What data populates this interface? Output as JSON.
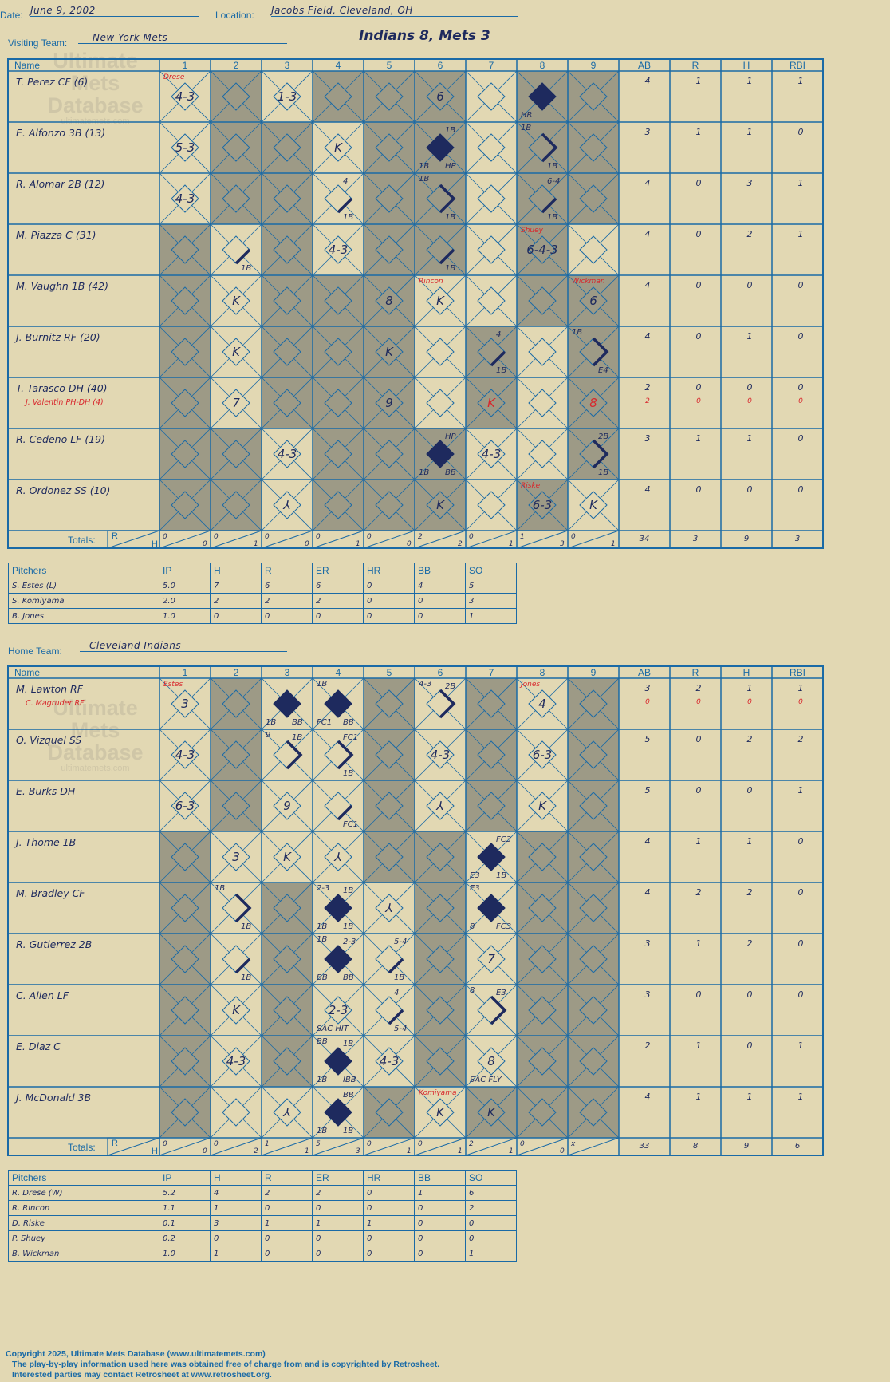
{
  "header": {
    "date_label": "Date:",
    "date_value": "June 9, 2002",
    "location_label": "Location:",
    "location_value": "Jacobs Field, Cleveland, OH",
    "visiting_label": "Visiting Team:",
    "visiting_value": "New York Mets",
    "home_label": "Home Team:",
    "home_value": "Cleveland Indians",
    "game_title": "Indians 8, Mets 3"
  },
  "watermark": {
    "line1": "Ultimate",
    "line2": "Mets",
    "line3": "Database",
    "site": "ultimatemets.com"
  },
  "columns": {
    "name": "Name",
    "innings": [
      "1",
      "2",
      "3",
      "4",
      "5",
      "6",
      "7",
      "8",
      "9"
    ],
    "stats": [
      "AB",
      "R",
      "H",
      "RBI"
    ],
    "totals_label": "Totals:",
    "r": "R",
    "h": "H"
  },
  "colors": {
    "background": "#e2d8b3",
    "grid": "#1a6aa6",
    "shade": "#9d9a86",
    "ink": "#1e2a5e",
    "red": "#d8262c"
  },
  "visitor": {
    "shade_ranges": [
      [
        1,
        0,
        2
      ],
      [
        3,
        0,
        3
      ],
      [
        4,
        0,
        8
      ],
      [
        1,
        3,
        3
      ],
      [
        2,
        0,
        2
      ],
      [
        6,
        2,
        2
      ],
      [
        5,
        3,
        3
      ],
      [
        7,
        0,
        0
      ],
      [
        7,
        1,
        1
      ],
      [
        8,
        0,
        0
      ]
    ],
    "players": [
      {
        "name": "T. Perez CF (6)",
        "sub": "",
        "ab": "4",
        "r": "1",
        "h": "1",
        "rbi": "1",
        "sub_stats": [
          "",
          "",
          "",
          ""
        ]
      },
      {
        "name": "E. Alfonzo 3B (13)",
        "sub": "",
        "ab": "3",
        "r": "1",
        "h": "1",
        "rbi": "0",
        "sub_stats": [
          "",
          "",
          "",
          ""
        ]
      },
      {
        "name": "R. Alomar 2B (12)",
        "sub": "",
        "ab": "4",
        "r": "0",
        "h": "3",
        "rbi": "1",
        "sub_stats": [
          "",
          "",
          "",
          ""
        ]
      },
      {
        "name": "M. Piazza C (31)",
        "sub": "",
        "ab": "4",
        "r": "0",
        "h": "2",
        "rbi": "1",
        "sub_stats": [
          "",
          "",
          "",
          ""
        ]
      },
      {
        "name": "M. Vaughn 1B (42)",
        "sub": "",
        "ab": "4",
        "r": "0",
        "h": "0",
        "rbi": "0",
        "sub_stats": [
          "",
          "",
          "",
          ""
        ]
      },
      {
        "name": "J. Burnitz RF (20)",
        "sub": "",
        "ab": "4",
        "r": "0",
        "h": "1",
        "rbi": "0",
        "sub_stats": [
          "",
          "",
          "",
          ""
        ]
      },
      {
        "name": "T. Tarasco DH (40)",
        "sub": "J. Valentin PH-DH (4)",
        "ab": "2",
        "r": "0",
        "h": "0",
        "rbi": "0",
        "sub_stats": [
          "2",
          "0",
          "0",
          "0"
        ]
      },
      {
        "name": "R. Cedeno LF (19)",
        "sub": "",
        "ab": "3",
        "r": "1",
        "h": "1",
        "rbi": "0",
        "sub_stats": [
          "",
          "",
          "",
          ""
        ]
      },
      {
        "name": "R. Ordonez SS (10)",
        "sub": "",
        "ab": "4",
        "r": "0",
        "h": "0",
        "rbi": "0",
        "sub_stats": [
          "",
          "",
          "",
          ""
        ]
      }
    ],
    "cells": [
      {
        "r": 0,
        "c": 0,
        "main": "4-3",
        "tl": "Drese",
        "tl_red": true
      },
      {
        "r": 0,
        "c": 2,
        "main": "1-3"
      },
      {
        "r": 0,
        "c": 5,
        "main": "6"
      },
      {
        "r": 0,
        "c": 7,
        "main": "",
        "fill": true,
        "bl": "HR"
      },
      {
        "r": 1,
        "c": 0,
        "main": "5-3"
      },
      {
        "r": 1,
        "c": 3,
        "main": "K"
      },
      {
        "r": 1,
        "c": 5,
        "fill": true,
        "tr": "1B",
        "bl": "1B",
        "br": "HP"
      },
      {
        "r": 1,
        "c": 7,
        "partial": true,
        "tl": "1B",
        "br": "1B"
      },
      {
        "r": 2,
        "c": 0,
        "main": "4-3"
      },
      {
        "r": 2,
        "c": 3,
        "line": true,
        "tr": "4",
        "br": "1B"
      },
      {
        "r": 2,
        "c": 5,
        "partial": true,
        "tl": "1B",
        "br": "1B"
      },
      {
        "r": 2,
        "c": 7,
        "line": true,
        "tr": "6-4",
        "br": "1B"
      },
      {
        "r": 3,
        "c": 1,
        "line": true,
        "br": "1B"
      },
      {
        "r": 3,
        "c": 3,
        "main": "4-3"
      },
      {
        "r": 3,
        "c": 5,
        "line": true,
        "br": "1B"
      },
      {
        "r": 3,
        "c": 7,
        "main": "6-4-3",
        "tl": "Shuey",
        "tl_red": true
      },
      {
        "r": 4,
        "c": 1,
        "main": "K"
      },
      {
        "r": 4,
        "c": 4,
        "main": "8"
      },
      {
        "r": 4,
        "c": 5,
        "main": "K",
        "tl": "Rincon",
        "tl_red": true
      },
      {
        "r": 4,
        "c": 8,
        "main": "6",
        "tl": "Wickman",
        "tl_red": true
      },
      {
        "r": 5,
        "c": 1,
        "main": "K"
      },
      {
        "r": 5,
        "c": 4,
        "main": "K"
      },
      {
        "r": 5,
        "c": 6,
        "line": true,
        "tr": "4",
        "br": "1B"
      },
      {
        "r": 5,
        "c": 8,
        "partial": true,
        "tl": "1B",
        "br": "E4"
      },
      {
        "r": 6,
        "c": 1,
        "main": "7"
      },
      {
        "r": 6,
        "c": 4,
        "main": "9"
      },
      {
        "r": 6,
        "c": 6,
        "main": "K",
        "main_red": true
      },
      {
        "r": 6,
        "c": 8,
        "main": "8",
        "main_red": true
      },
      {
        "r": 7,
        "c": 2,
        "main": "4-3"
      },
      {
        "r": 7,
        "c": 5,
        "fill": true,
        "tr": "HP",
        "bl": "1B",
        "br": "BB"
      },
      {
        "r": 7,
        "c": 6,
        "main": "4-3"
      },
      {
        "r": 7,
        "c": 8,
        "partial": true,
        "tr": "2B",
        "br": "1B"
      },
      {
        "r": 8,
        "c": 2,
        "main": "⅄"
      },
      {
        "r": 8,
        "c": 5,
        "main": "K"
      },
      {
        "r": 8,
        "c": 7,
        "main": "6-3",
        "tl": "Riske",
        "tl_red": true
      },
      {
        "r": 8,
        "c": 8,
        "main": "K"
      }
    ],
    "totals": [
      [
        "0",
        "0"
      ],
      [
        "0",
        "1"
      ],
      [
        "0",
        "0"
      ],
      [
        "0",
        "1"
      ],
      [
        "0",
        "0"
      ],
      [
        "2",
        "2"
      ],
      [
        "0",
        "1"
      ],
      [
        "1",
        "3"
      ],
      [
        "0",
        "1"
      ]
    ],
    "totals_stats": [
      "34",
      "3",
      "9",
      "3"
    ],
    "pitchers_header": [
      "Pitchers",
      "IP",
      "H",
      "R",
      "ER",
      "HR",
      "BB",
      "SO"
    ],
    "pitchers": [
      [
        "S. Estes (L)",
        "5.0",
        "7",
        "6",
        "6",
        "0",
        "4",
        "5"
      ],
      [
        "S. Komiyama",
        "2.0",
        "2",
        "2",
        "2",
        "0",
        "0",
        "3"
      ],
      [
        "B. Jones",
        "1.0",
        "0",
        "0",
        "0",
        "0",
        "0",
        "1"
      ]
    ]
  },
  "home": {
    "shade_ranges": [],
    "players": [
      {
        "name": "M. Lawton RF",
        "sub": "C. Magruder RF",
        "ab": "3",
        "r": "2",
        "h": "1",
        "rbi": "1",
        "sub_stats": [
          "0",
          "0",
          "0",
          "0"
        ]
      },
      {
        "name": "O. Vizquel SS",
        "sub": "",
        "ab": "5",
        "r": "0",
        "h": "2",
        "rbi": "2",
        "sub_stats": [
          "",
          "",
          "",
          ""
        ]
      },
      {
        "name": "E. Burks DH",
        "sub": "",
        "ab": "5",
        "r": "0",
        "h": "0",
        "rbi": "1",
        "sub_stats": [
          "",
          "",
          "",
          ""
        ]
      },
      {
        "name": "J. Thome 1B",
        "sub": "",
        "ab": "4",
        "r": "1",
        "h": "1",
        "rbi": "0",
        "sub_stats": [
          "",
          "",
          "",
          ""
        ]
      },
      {
        "name": "M. Bradley CF",
        "sub": "",
        "ab": "4",
        "r": "2",
        "h": "2",
        "rbi": "0",
        "sub_stats": [
          "",
          "",
          "",
          ""
        ]
      },
      {
        "name": "R. Gutierrez 2B",
        "sub": "",
        "ab": "3",
        "r": "1",
        "h": "2",
        "rbi": "0",
        "sub_stats": [
          "",
          "",
          "",
          ""
        ]
      },
      {
        "name": "C. Allen LF",
        "sub": "",
        "ab": "3",
        "r": "0",
        "h": "0",
        "rbi": "0",
        "sub_stats": [
          "",
          "",
          "",
          ""
        ]
      },
      {
        "name": "E. Diaz C",
        "sub": "",
        "ab": "2",
        "r": "1",
        "h": "0",
        "rbi": "1",
        "sub_stats": [
          "",
          "",
          "",
          ""
        ]
      },
      {
        "name": "J. McDonald 3B",
        "sub": "",
        "ab": "4",
        "r": "1",
        "h": "1",
        "rbi": "1",
        "sub_stats": [
          "",
          "",
          "",
          ""
        ]
      }
    ],
    "cells": [
      {
        "r": 0,
        "c": 0,
        "main": "3",
        "tl": "Estes",
        "tl_red": true
      },
      {
        "r": 0,
        "c": 2,
        "fill": true,
        "bl": "1B",
        "br": "BB"
      },
      {
        "r": 0,
        "c": 3,
        "fill": true,
        "tl": "1B",
        "bl": "FC1",
        "br": "BB"
      },
      {
        "r": 0,
        "c": 5,
        "partial": true,
        "tl": "4-3",
        "tr": "2B"
      },
      {
        "r": 0,
        "c": 7,
        "main": "4",
        "tl": "Jones",
        "tl_red": true
      },
      {
        "r": 1,
        "c": 0,
        "main": "4-3"
      },
      {
        "r": 1,
        "c": 2,
        "partial": true,
        "tl": "9",
        "tr": "1B"
      },
      {
        "r": 1,
        "c": 3,
        "partial": true,
        "tr": "FC1",
        "br": "1B"
      },
      {
        "r": 1,
        "c": 5,
        "main": "4-3"
      },
      {
        "r": 1,
        "c": 7,
        "main": "6-3"
      },
      {
        "r": 2,
        "c": 0,
        "main": "6-3"
      },
      {
        "r": 2,
        "c": 2,
        "main": "9"
      },
      {
        "r": 2,
        "c": 3,
        "line": true,
        "br": "FC1"
      },
      {
        "r": 2,
        "c": 5,
        "main": "⅄"
      },
      {
        "r": 2,
        "c": 7,
        "main": "K"
      },
      {
        "r": 3,
        "c": 1,
        "main": "3"
      },
      {
        "r": 3,
        "c": 2,
        "main": "K"
      },
      {
        "r": 3,
        "c": 3,
        "main": "⅄"
      },
      {
        "r": 3,
        "c": 6,
        "fill": true,
        "tr": "FC3",
        "bl": "E3",
        "br": "1B"
      },
      {
        "r": 4,
        "c": 1,
        "partial": true,
        "tl": "1B",
        "br": "1B"
      },
      {
        "r": 4,
        "c": 3,
        "fill": true,
        "tl": "2-3",
        "tr": "1B",
        "bl": "1B",
        "br": "1B"
      },
      {
        "r": 4,
        "c": 4,
        "main": "⅄"
      },
      {
        "r": 4,
        "c": 6,
        "fill": true,
        "tl": "E3",
        "bl": "8",
        "br": "FC3"
      },
      {
        "r": 5,
        "c": 1,
        "line": true,
        "br": "1B"
      },
      {
        "r": 5,
        "c": 3,
        "fill": true,
        "tl": "1B",
        "tr": "2-3",
        "bl": "BB",
        "br": "BB"
      },
      {
        "r": 5,
        "c": 4,
        "line": true,
        "tr": "5-4",
        "br": "1B"
      },
      {
        "r": 5,
        "c": 6,
        "main": "7"
      },
      {
        "r": 6,
        "c": 1,
        "main": "K"
      },
      {
        "r": 6,
        "c": 3,
        "main": "2-3",
        "bl": "SAC HIT"
      },
      {
        "r": 6,
        "c": 4,
        "line": true,
        "tr": "4",
        "br": "5-4"
      },
      {
        "r": 6,
        "c": 6,
        "partial": true,
        "tl": "8",
        "tr": "E3"
      },
      {
        "r": 7,
        "c": 1,
        "main": "4-3"
      },
      {
        "r": 7,
        "c": 3,
        "fill": true,
        "tl": "BB",
        "tr": "1B",
        "bl": "1B",
        "br": "IBB"
      },
      {
        "r": 7,
        "c": 4,
        "main": "4-3"
      },
      {
        "r": 7,
        "c": 6,
        "main": "8",
        "bl": "SAC FLY"
      },
      {
        "r": 8,
        "c": 2,
        "main": "⅄"
      },
      {
        "r": 8,
        "c": 3,
        "fill": true,
        "tr": "BB",
        "bl": "1B",
        "br": "1B"
      },
      {
        "r": 8,
        "c": 5,
        "main": "K",
        "tl": "Komiyama",
        "tl_red": true
      },
      {
        "r": 8,
        "c": 6,
        "main": "K"
      }
    ],
    "totals": [
      [
        "0",
        "0"
      ],
      [
        "0",
        "2"
      ],
      [
        "1",
        "1"
      ],
      [
        "5",
        "3"
      ],
      [
        "0",
        "1"
      ],
      [
        "0",
        "1"
      ],
      [
        "2",
        "1"
      ],
      [
        "0",
        "0"
      ],
      [
        "x",
        ""
      ]
    ],
    "totals_stats": [
      "33",
      "8",
      "9",
      "6"
    ],
    "pitchers_header": [
      "Pitchers",
      "IP",
      "H",
      "R",
      "ER",
      "HR",
      "BB",
      "SO"
    ],
    "pitchers": [
      [
        "R. Drese (W)",
        "5.2",
        "4",
        "2",
        "2",
        "0",
        "1",
        "6"
      ],
      [
        "R. Rincon",
        "1.1",
        "1",
        "0",
        "0",
        "0",
        "0",
        "2"
      ],
      [
        "D. Riske",
        "0.1",
        "3",
        "1",
        "1",
        "1",
        "0",
        "0"
      ],
      [
        "P. Shuey",
        "0.2",
        "0",
        "0",
        "0",
        "0",
        "0",
        "0"
      ],
      [
        "B. Wickman",
        "1.0",
        "1",
        "0",
        "0",
        "0",
        "0",
        "1"
      ]
    ]
  },
  "footer": {
    "line1": "Copyright 2025, Ultimate Mets Database (www.ultimatemets.com)",
    "line2": "The play-by-play information used here was obtained free of charge from and is copyrighted by Retrosheet.",
    "line3": "Interested parties may contact Retrosheet at www.retrosheet.org."
  }
}
